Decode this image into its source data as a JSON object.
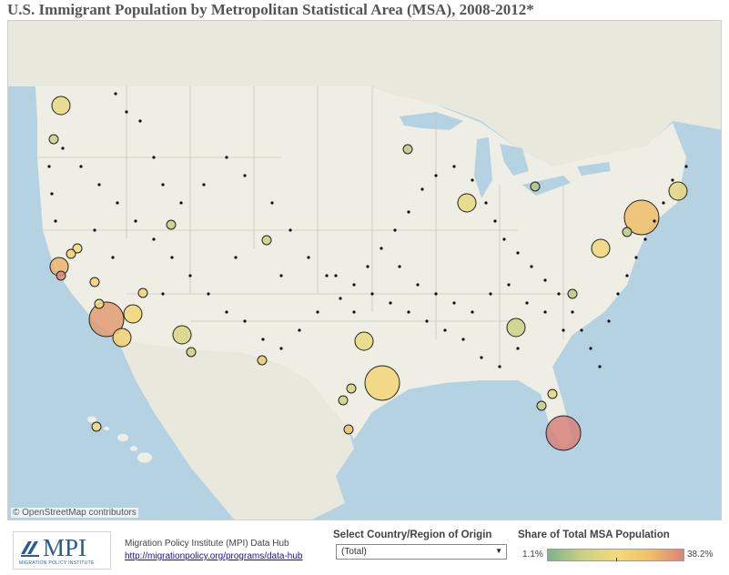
{
  "title": "U.S. Immigrant Population by Metropolitan Statistical Area (MSA), 2008-2012*",
  "attribution": "© OpenStreetMap contributors",
  "colors": {
    "land": "#efeee4",
    "water": "#b5d2e2",
    "canada": "#e9e8dd",
    "boundary": "#c9c7bd",
    "scale_low": "#80b18b",
    "scale_mid": "#f1dc7d",
    "scale_high": "#d9837a"
  },
  "logo": {
    "text": "MPI",
    "subtitle": "MIGRATION POLICY INSTITUTE"
  },
  "footer": {
    "hub_name": "Migration Policy Institute (MPI) Data Hub",
    "hub_link": "http://migrationpolicy.org/programs/data-hub"
  },
  "filter": {
    "label": "Select Country/Region of Origin",
    "selected": "(Total)"
  },
  "legend": {
    "label": "Share of Total MSA Population",
    "min": "1.1%",
    "max": "38.2%"
  },
  "map_data": {
    "metric": "Share of Total MSA Population (%)",
    "symbols": [
      {
        "area": "Los Angeles",
        "share": 34.0,
        "size": "large"
      },
      {
        "area": "New York",
        "share": 28.5,
        "size": "large"
      },
      {
        "area": "Miami",
        "share": 38.2,
        "size": "large"
      },
      {
        "area": "Houston",
        "share": 22.0,
        "size": "large"
      },
      {
        "area": "Chicago",
        "share": 17.5,
        "size": "medium"
      },
      {
        "area": "Dallas",
        "share": 18.0,
        "size": "medium"
      },
      {
        "area": "San Francisco",
        "share": 30.0,
        "size": "medium"
      },
      {
        "area": "Washington",
        "share": 21.5,
        "size": "medium"
      },
      {
        "area": "Riverside",
        "share": 22.0,
        "size": "medium"
      },
      {
        "area": "Phoenix",
        "share": 15.0,
        "size": "medium"
      },
      {
        "area": "Atlanta",
        "share": 13.0,
        "size": "medium"
      },
      {
        "area": "Boston",
        "share": 17.0,
        "size": "medium"
      },
      {
        "area": "Seattle",
        "share": 17.5,
        "size": "medium"
      },
      {
        "area": "San Diego",
        "share": 23.5,
        "size": "medium"
      },
      {
        "area": "Philadelphia",
        "share": 10.0,
        "size": "small"
      },
      {
        "area": "Las Vegas",
        "share": 22.0,
        "size": "small"
      },
      {
        "area": "Denver",
        "share": 12.5,
        "size": "small"
      },
      {
        "area": "Detroit",
        "share": 8.5,
        "size": "small"
      },
      {
        "area": "Minneapolis",
        "share": 10.0,
        "size": "small"
      },
      {
        "area": "Sacramento",
        "share": 19.5,
        "size": "small"
      },
      {
        "area": "San Jose",
        "share": 37.0,
        "size": "small"
      },
      {
        "area": "Fresno",
        "share": 22.0,
        "size": "small"
      },
      {
        "area": "Orlando",
        "share": 17.0,
        "size": "small"
      },
      {
        "area": "Tampa",
        "share": 12.5,
        "size": "small"
      },
      {
        "area": "Austin",
        "share": 14.5,
        "size": "small"
      },
      {
        "area": "San Antonio",
        "share": 12.5,
        "size": "small"
      },
      {
        "area": "McAllen",
        "share": 28.0,
        "size": "small"
      },
      {
        "area": "El Paso",
        "share": 26.0,
        "size": "small"
      },
      {
        "area": "Honolulu",
        "share": 20.0,
        "size": "small"
      },
      {
        "area": "Portland",
        "share": 12.5,
        "size": "small"
      },
      {
        "area": "Salt Lake City",
        "share": 11.5,
        "size": "small"
      },
      {
        "area": "Charlotte",
        "share": 10.0,
        "size": "small"
      },
      {
        "area": "Tucson",
        "share": 13.0,
        "size": "small"
      },
      {
        "area": "Bakersfield",
        "share": 20.5,
        "size": "small"
      },
      {
        "area": "Stockton",
        "share": 23.5,
        "size": "small"
      }
    ]
  }
}
